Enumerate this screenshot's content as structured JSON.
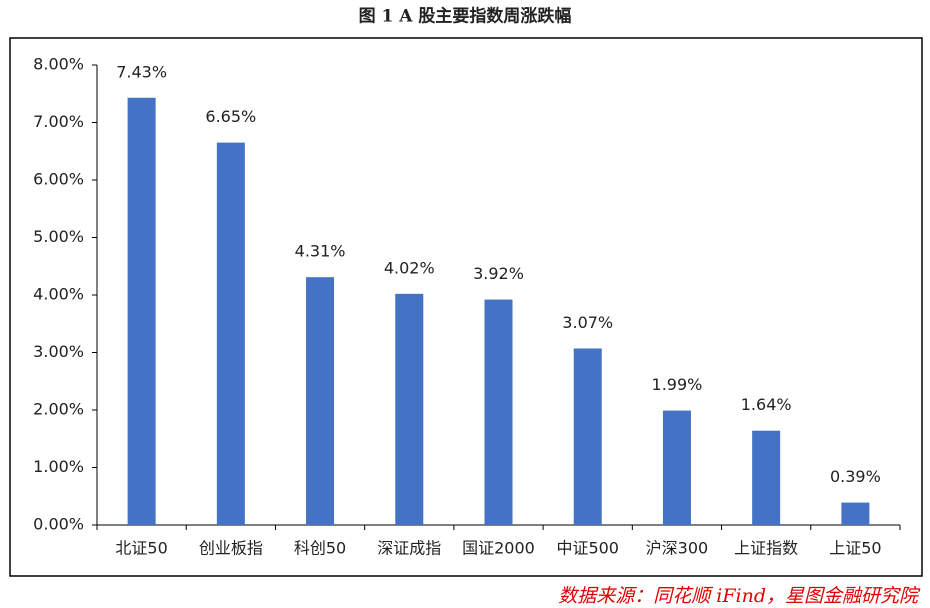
{
  "chart_data": {
    "type": "bar",
    "title": "图 1 A 股主要指数周涨跌幅",
    "categories": [
      "北证50",
      "创业板指",
      "科创50",
      "深证成指",
      "国证2000",
      "中证500",
      "沪深300",
      "上证指数",
      "上证50"
    ],
    "values": [
      7.43,
      6.65,
      4.31,
      4.02,
      3.92,
      3.07,
      1.99,
      1.64,
      0.39
    ],
    "value_labels": [
      "7.43%",
      "6.65%",
      "4.31%",
      "4.02%",
      "3.92%",
      "3.07%",
      "1.99%",
      "1.64%",
      "0.39%"
    ],
    "color": "#4472c4",
    "ylim": [
      0,
      8
    ],
    "yticks": [
      {
        "value": 0,
        "label": "0.00%"
      },
      {
        "value": 1,
        "label": "1.00%"
      },
      {
        "value": 2,
        "label": "2.00%"
      },
      {
        "value": 3,
        "label": "3.00%"
      },
      {
        "value": 4,
        "label": "4.00%"
      },
      {
        "value": 5,
        "label": "5.00%"
      },
      {
        "value": 6,
        "label": "6.00%"
      },
      {
        "value": 7,
        "label": "7.00%"
      },
      {
        "value": 8,
        "label": "8.00%"
      }
    ],
    "grid": false,
    "source": "数据来源：同花顺 iFind，星图金融研究院"
  }
}
